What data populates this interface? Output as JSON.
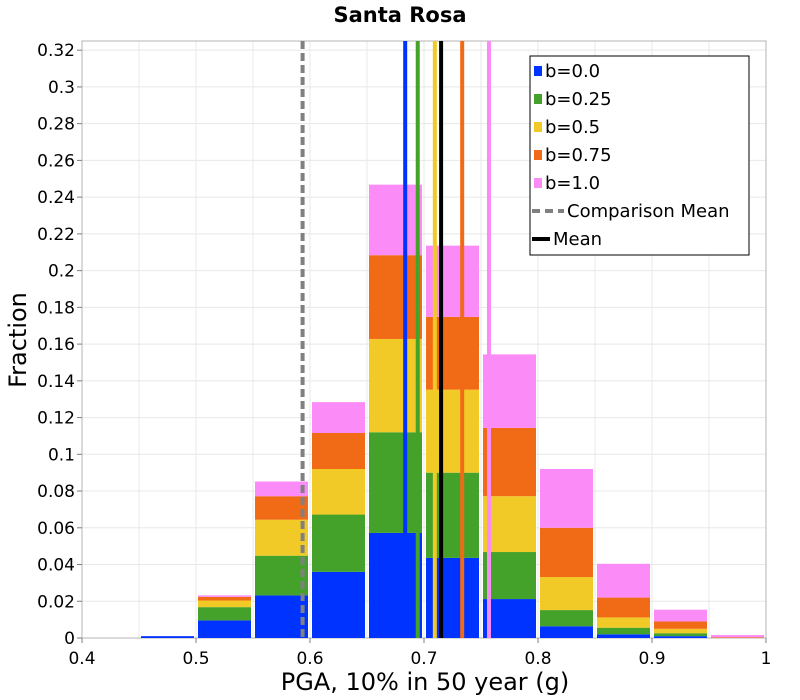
{
  "chart_data": {
    "type": "bar",
    "stacked": true,
    "title": "Santa Rosa",
    "xlabel": "PGA, 10% in 50 year (g)",
    "ylabel": "Fraction",
    "xlim": [
      0.4,
      1.0
    ],
    "ylim": [
      0,
      0.325
    ],
    "grid": true,
    "legend_position": "top-right",
    "x_ticks": [
      "0.4",
      "0.5",
      "0.6",
      "0.7",
      "0.8",
      "0.9",
      "1"
    ],
    "x_tick_values": [
      0.4,
      0.5,
      0.6,
      0.7,
      0.8,
      0.9,
      1.0
    ],
    "y_ticks": [
      "0",
      "0.02",
      "0.04",
      "0.06",
      "0.08",
      "0.1",
      "0.12",
      "0.14",
      "0.16",
      "0.18",
      "0.2",
      "0.22",
      "0.24",
      "0.26",
      "0.28",
      "0.3",
      "0.32"
    ],
    "y_tick_values": [
      0,
      0.02,
      0.04,
      0.06,
      0.08,
      0.1,
      0.12,
      0.14,
      0.16,
      0.18,
      0.2,
      0.22,
      0.24,
      0.26,
      0.28,
      0.3,
      0.32
    ],
    "bin_width": 0.05,
    "bin_centers": [
      0.425,
      0.475,
      0.525,
      0.575,
      0.625,
      0.675,
      0.725,
      0.775,
      0.825,
      0.875,
      0.925,
      0.975
    ],
    "series": [
      {
        "name": "b=0.0",
        "color": "#0033ff",
        "values": [
          0.0,
          0.001,
          0.0096,
          0.0232,
          0.036,
          0.0572,
          0.0436,
          0.0212,
          0.0064,
          0.002,
          0.001,
          0.0
        ]
      },
      {
        "name": "b=0.25",
        "color": "#44a12a",
        "values": [
          0.0,
          0.0,
          0.0072,
          0.0216,
          0.0312,
          0.0548,
          0.0464,
          0.0256,
          0.0088,
          0.0036,
          0.0016,
          0.0
        ]
      },
      {
        "name": "b=0.5",
        "color": "#f2ca27",
        "values": [
          0.0,
          0.0,
          0.0036,
          0.0196,
          0.0248,
          0.0508,
          0.0452,
          0.0304,
          0.018,
          0.0056,
          0.0024,
          0.0
        ]
      },
      {
        "name": "b=0.75",
        "color": "#f16a16",
        "values": [
          0.0,
          0.0,
          0.002,
          0.0128,
          0.0196,
          0.0456,
          0.0396,
          0.0372,
          0.0268,
          0.0108,
          0.004,
          0.0004
        ]
      },
      {
        "name": "b=1.0",
        "color": "#fb8cf7",
        "values": [
          0.0,
          0.0,
          0.0008,
          0.008,
          0.0168,
          0.0384,
          0.0388,
          0.04,
          0.032,
          0.0184,
          0.0064,
          0.0012
        ]
      }
    ],
    "mean_lines": [
      {
        "name": "b=0.0",
        "color": "#0033ff",
        "x": 0.6835
      },
      {
        "name": "b=0.25",
        "color": "#44a12a",
        "x": 0.6945
      },
      {
        "name": "b=0.5",
        "color": "#f2ca27",
        "x": 0.7095
      },
      {
        "name": "b=0.75",
        "color": "#f16a16",
        "x": 0.7335
      },
      {
        "name": "b=1.0",
        "color": "#fb8cf7",
        "x": 0.757
      }
    ],
    "comparison_mean": {
      "name": "Comparison Mean",
      "x": 0.5935,
      "color": "#808080",
      "style": "dashed"
    },
    "overall_mean": {
      "name": "Mean",
      "x": 0.715,
      "color": "#000000"
    },
    "legend": [
      {
        "label": "b=0.0",
        "color": "#0033ff",
        "kind": "square"
      },
      {
        "label": "b=0.25",
        "color": "#44a12a",
        "kind": "square"
      },
      {
        "label": "b=0.5",
        "color": "#f2ca27",
        "kind": "square"
      },
      {
        "label": "b=0.75",
        "color": "#f16a16",
        "kind": "square"
      },
      {
        "label": "b=1.0",
        "color": "#fb8cf7",
        "kind": "square"
      },
      {
        "label": "Comparison Mean",
        "color": "#808080",
        "kind": "dashed"
      },
      {
        "label": "Mean",
        "color": "#000000",
        "kind": "line"
      }
    ]
  }
}
